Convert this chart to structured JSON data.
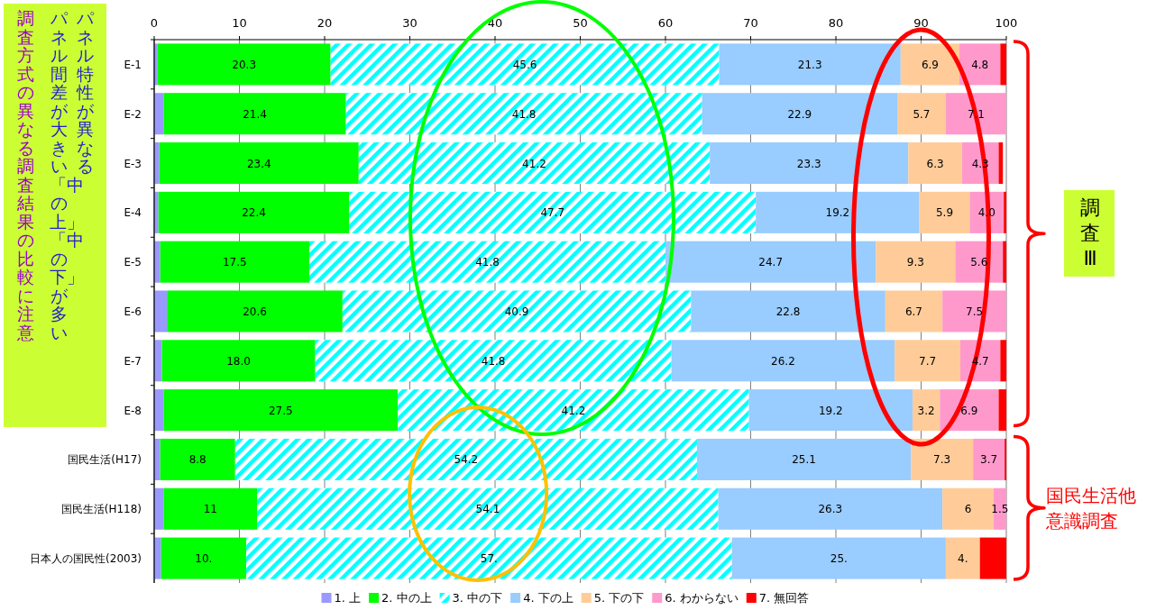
{
  "chart_data": {
    "type": "bar",
    "orientation": "horizontal",
    "stacked": true,
    "categories": [
      "E-1",
      "E-2",
      "E-3",
      "E-4",
      "E-5",
      "E-6",
      "E-7",
      "E-8",
      "国民生活(H17)",
      "国民生活(H118)",
      "日本人の国民性(2003)"
    ],
    "xlim": [
      0,
      100
    ],
    "xticks": [
      0,
      10,
      20,
      30,
      40,
      50,
      60,
      70,
      80,
      90,
      100
    ],
    "grid": "x",
    "legend": "bottom",
    "series": [
      {
        "name": "1. 上",
        "color": "#9999ff",
        "values": [
          0.4,
          1.1,
          0.6,
          0.5,
          0.7,
          1.5,
          0.9,
          1.1,
          0.7,
          1.1,
          0.8
        ]
      },
      {
        "name": "2. 中の上",
        "color": "#00ff00",
        "values": [
          20.3,
          21.4,
          23.4,
          22.4,
          17.5,
          20.6,
          18.0,
          27.5,
          8.8,
          11,
          10.0
        ],
        "value_labels": [
          "20.3",
          "21.4",
          "23.4",
          "22.4",
          "17.5",
          "20.6",
          "18.0",
          "27.5",
          "8.8",
          "11",
          "10."
        ]
      },
      {
        "name": "3. 中の下",
        "color": "#00ffff",
        "values": [
          45.6,
          41.8,
          41.2,
          47.7,
          41.8,
          40.9,
          41.8,
          41.2,
          54.2,
          54.1,
          57.0
        ],
        "value_labels": [
          "45.6",
          "41.8",
          "41.2",
          "47.7",
          "41.8",
          "40.9",
          "41.8",
          "41.2",
          "54.2",
          "54.1",
          "57."
        ]
      },
      {
        "name": "4. 下の上",
        "color": "#99ccff",
        "values": [
          21.3,
          22.9,
          23.3,
          19.2,
          24.7,
          22.8,
          26.2,
          19.2,
          25.1,
          26.3,
          25.1
        ],
        "value_labels": [
          "21.3",
          "22.9",
          "23.3",
          "19.2",
          "24.7",
          "22.8",
          "26.2",
          "19.2",
          "25.1",
          "26.3",
          "25."
        ]
      },
      {
        "name": "5. 下の下",
        "color": "#ffcc99",
        "values": [
          6.9,
          5.7,
          6.3,
          5.9,
          9.3,
          6.7,
          7.7,
          3.2,
          7.3,
          6,
          4.0
        ],
        "value_labels": [
          "6.9",
          "5.7",
          "6.3",
          "5.9",
          "9.3",
          "6.7",
          "7.7",
          "3.2",
          "7.3",
          "6",
          "4."
        ]
      },
      {
        "name": "6. わからない",
        "color": "#ff99cc",
        "values": [
          4.8,
          7.1,
          4.3,
          4.0,
          5.6,
          7.5,
          4.7,
          6.9,
          3.7,
          1.5,
          0
        ],
        "value_labels": [
          "4.8",
          "7.1",
          "4.3",
          "4.0",
          "5.6",
          "7.5",
          "4.7",
          "6.9",
          "3.7",
          "1.5",
          null
        ]
      },
      {
        "name": "7. 無回答",
        "color": "#ff0000",
        "values": [
          0.7,
          0,
          0.5,
          0.3,
          0.4,
          0,
          0.7,
          0.9,
          0.2,
          0,
          3.1
        ]
      }
    ],
    "annotations": [
      "パネル特性が異なる",
      "パネル間差が大きい「中の上」「中の下」が多い",
      "調査方式の異なる調査結果の比較に注意",
      "調査Ⅲ",
      "国民生活他意識調査"
    ]
  }
}
